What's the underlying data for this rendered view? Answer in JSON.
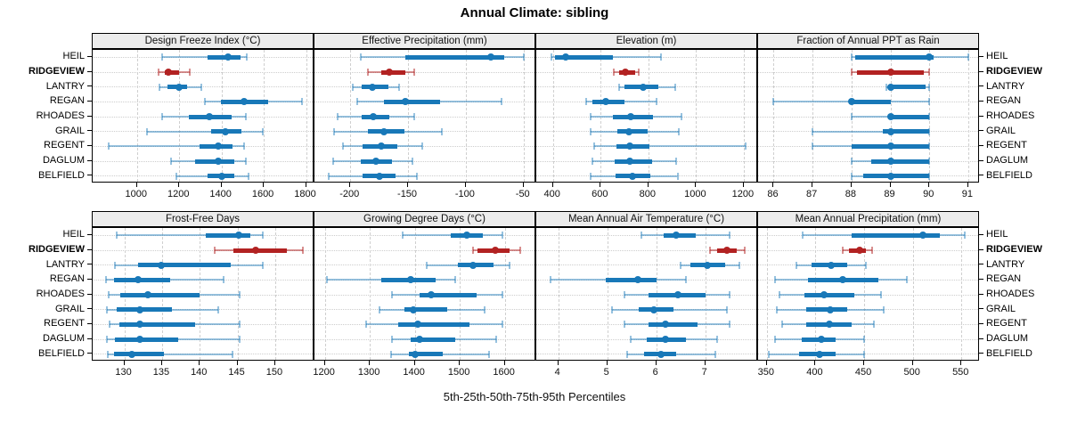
{
  "title": "Annual Climate: sibling",
  "caption": "5th-25th-50th-75th-95th Percentiles",
  "stations": [
    "HEIL",
    "RIDGEVIEW",
    "LANTRY",
    "REGAN",
    "RHOADES",
    "GRAIL",
    "REGENT",
    "DAGLUM",
    "BELFIELD"
  ],
  "highlight_station": "RIDGEVIEW",
  "colors": {
    "primary": "#1878b8",
    "primary_light": "rgba(24,120,184,0.45)",
    "highlight": "#b22222",
    "highlight_light": "rgba(178,34,34,0.5)",
    "strip_bg": "#ececec",
    "grid": "#cdcdcd",
    "border": "#000000"
  },
  "chart_data": [
    {
      "type": "dotplot-percentiles",
      "title": "Design Freeze Index (°C)",
      "domain": [
        790,
        1840
      ],
      "ticks": [
        1000,
        1200,
        1400,
        1600,
        1800
      ],
      "percentiles": [
        5,
        25,
        50,
        75,
        95
      ],
      "values": [
        [
          1120,
          1335,
          1430,
          1488,
          1520
        ],
        [
          1100,
          1132,
          1150,
          1200,
          1250
        ],
        [
          1108,
          1146,
          1201,
          1236,
          1304
        ],
        [
          1320,
          1396,
          1506,
          1620,
          1780
        ],
        [
          1121,
          1244,
          1341,
          1446,
          1516
        ],
        [
          1049,
          1349,
          1419,
          1495,
          1595
        ],
        [
          866,
          1294,
          1384,
          1451,
          1506
        ],
        [
          1160,
          1276,
          1384,
          1459,
          1515
        ],
        [
          1186,
          1334,
          1400,
          1460,
          1526
        ]
      ]
    },
    {
      "type": "dotplot-percentiles",
      "title": "Effective Precipitation (mm)",
      "domain": [
        -231,
        -39
      ],
      "ticks": [
        -200,
        -150,
        -100,
        -50
      ],
      "percentiles": [
        5,
        25,
        50,
        75,
        95
      ],
      "values": [
        [
          -191,
          -152,
          -78,
          -67,
          -50
        ],
        [
          -185,
          -173,
          -166,
          -152,
          -145
        ],
        [
          -198,
          -190,
          -181,
          -167,
          -158
        ],
        [
          -194,
          -171,
          -152,
          -122,
          -69
        ],
        [
          -211,
          -190,
          -180,
          -166,
          -145
        ],
        [
          -214,
          -185,
          -171,
          -153,
          -121
        ],
        [
          -206,
          -189,
          -173,
          -159,
          -138
        ],
        [
          -215,
          -191,
          -178,
          -164,
          -146
        ],
        [
          -219,
          -189,
          -175,
          -161,
          -142
        ]
      ]
    },
    {
      "type": "dotplot-percentiles",
      "title": "Elevation (m)",
      "domain": [
        330,
        1260
      ],
      "ticks": [
        400,
        600,
        800,
        1000,
        1200
      ],
      "percentiles": [
        5,
        25,
        50,
        75,
        95
      ],
      "values": [
        [
          394,
          410,
          453,
          652,
          852
        ],
        [
          655,
          678,
          705,
          746,
          761
        ],
        [
          677,
          700,
          779,
          840,
          914
        ],
        [
          540,
          565,
          621,
          698,
          833
        ],
        [
          559,
          652,
          727,
          820,
          938
        ],
        [
          557,
          671,
          718,
          797,
          928
        ],
        [
          572,
          665,
          723,
          804,
          1208
        ],
        [
          565,
          659,
          723,
          814,
          917
        ],
        [
          557,
          661,
          733,
          808,
          922
        ]
      ]
    },
    {
      "type": "dotplot-percentiles",
      "title": "Fraction of Annual PPT as Rain",
      "domain": [
        85.6,
        91.3
      ],
      "ticks": [
        86,
        87,
        88,
        89,
        90,
        91
      ],
      "percentiles": [
        5,
        25,
        50,
        75,
        95
      ],
      "values": [
        [
          88,
          88.1,
          90,
          90.1,
          91
        ],
        [
          88,
          88.15,
          89,
          89.85,
          90
        ],
        [
          88.9,
          89,
          89,
          89.9,
          90
        ],
        [
          86,
          88,
          88,
          89,
          90
        ],
        [
          88,
          89,
          89,
          90,
          90
        ],
        [
          87,
          88.8,
          89,
          90,
          90
        ],
        [
          87,
          88,
          89,
          90,
          90
        ],
        [
          88,
          88.5,
          89,
          90,
          90
        ],
        [
          88,
          88.3,
          89,
          90,
          90
        ]
      ]
    },
    {
      "type": "dotplot-percentiles",
      "title": "Frost-Free Days",
      "domain": [
        125.8,
        155.2
      ],
      "ticks": [
        130,
        135,
        140,
        145,
        150
      ],
      "percentiles": [
        5,
        25,
        50,
        75,
        95
      ],
      "values": [
        [
          129,
          140.8,
          145.2,
          146.7,
          148.4
        ],
        [
          142,
          144.5,
          147.4,
          151.5,
          153.7
        ],
        [
          128.8,
          131.8,
          134.9,
          144.1,
          148.4
        ],
        [
          127.6,
          128.6,
          131.8,
          136.1,
          143.1
        ],
        [
          127.9,
          129.5,
          133.1,
          140,
          145.3
        ],
        [
          127.7,
          129,
          132,
          136.3,
          142.4
        ],
        [
          128,
          129.4,
          132,
          139.4,
          145.3
        ],
        [
          127.7,
          128.8,
          132,
          137.1,
          145.3
        ],
        [
          127.8,
          128.6,
          131,
          135.3,
          144.3
        ]
      ]
    },
    {
      "type": "dotplot-percentiles",
      "title": "Growing Degree Days (°C)",
      "domain": [
        1177,
        1670
      ],
      "ticks": [
        1200,
        1300,
        1400,
        1500,
        1600
      ],
      "percentiles": [
        5,
        25,
        50,
        75,
        95
      ],
      "values": [
        [
          1374,
          1479,
          1515,
          1552,
          1594
        ],
        [
          1529,
          1539,
          1578,
          1611,
          1634
        ],
        [
          1426,
          1496,
          1529,
          1575,
          1611
        ],
        [
          1205,
          1325,
          1390,
          1446,
          1490
        ],
        [
          1350,
          1410,
          1436,
          1538,
          1594
        ],
        [
          1321,
          1377,
          1397,
          1473,
          1555
        ],
        [
          1291,
          1364,
          1407,
          1522,
          1594
        ],
        [
          1350,
          1390,
          1410,
          1489,
          1581
        ],
        [
          1347,
          1387,
          1400,
          1463,
          1565
        ]
      ]
    },
    {
      "type": "dotplot-percentiles",
      "title": "Mean Annual Air Temperature (°C)",
      "domain": [
        3.55,
        8.08
      ],
      "ticks": [
        4,
        5,
        6,
        7
      ],
      "percentiles": [
        5,
        25,
        50,
        75,
        95
      ],
      "values": [
        [
          5.7,
          6.15,
          6.4,
          6.8,
          7.5
        ],
        [
          7.1,
          7.25,
          7.45,
          7.65,
          7.8
        ],
        [
          6.5,
          6.7,
          7.05,
          7.4,
          7.7
        ],
        [
          3.85,
          4.97,
          5.62,
          6.0,
          6.6
        ],
        [
          5.35,
          5.85,
          6.45,
          7.0,
          7.5
        ],
        [
          5.1,
          5.65,
          5.95,
          6.35,
          7.45
        ],
        [
          5.35,
          5.85,
          6.18,
          6.85,
          7.5
        ],
        [
          5.48,
          5.8,
          6.18,
          6.6,
          7.25
        ],
        [
          5.4,
          5.75,
          6.1,
          6.4,
          7.2
        ]
      ]
    },
    {
      "type": "dotplot-percentiles",
      "title": "Mean Annual Precipitation (mm)",
      "domain": [
        341,
        569
      ],
      "ticks": [
        350,
        400,
        450,
        500,
        550
      ],
      "percentiles": [
        5,
        25,
        50,
        75,
        95
      ],
      "values": [
        [
          387,
          437,
          510,
          528,
          553
        ],
        [
          428,
          434,
          445,
          452,
          458
        ],
        [
          380,
          396,
          416,
          433,
          452
        ],
        [
          358,
          392,
          428,
          465,
          494
        ],
        [
          363,
          389,
          409,
          440,
          467
        ],
        [
          360,
          390,
          415,
          433,
          470
        ],
        [
          366,
          390,
          414,
          437,
          460
        ],
        [
          358,
          386,
          406,
          421,
          450
        ],
        [
          352,
          383,
          404,
          421,
          450
        ]
      ]
    }
  ]
}
